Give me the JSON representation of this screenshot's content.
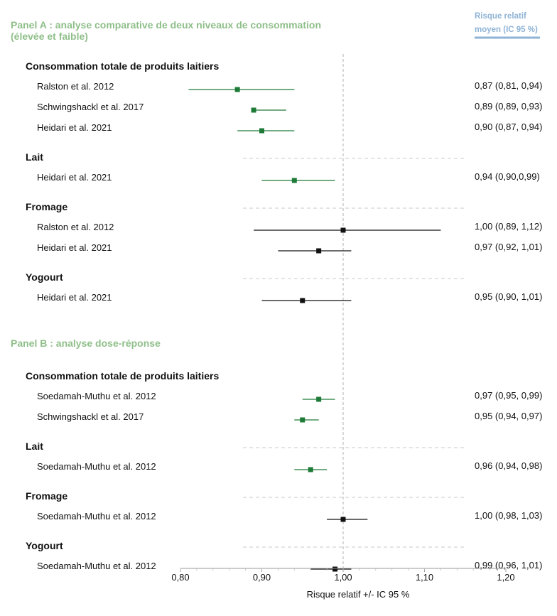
{
  "chart_data": {
    "type": "forest",
    "header": [
      "Risque relatif",
      "moyen (IC 95 %)"
    ],
    "xlabel": "Risque relatif +/- IC 95 %",
    "xlim": [
      0.8,
      1.2
    ],
    "x_ticks": [
      0.8,
      0.9,
      1.0,
      1.1,
      1.2
    ],
    "x_tick_labels": [
      "0,80",
      "0,90",
      "1,00",
      "1,10",
      "1,20"
    ],
    "reference_line": 1.0,
    "panels": [
      {
        "title": [
          "Panel A : analyse comparative de deux niveaux de consommation",
          "(élevée et faible)"
        ],
        "groups": [
          {
            "label": "Consommation totale de produits laitiers",
            "color": "#1e7a37",
            "studies": [
              {
                "name": "Ralston et al. 2012",
                "rr": 0.87,
                "low": 0.81,
                "high": 0.94,
                "ci_text": "0,87 (0,81, 0,94)"
              },
              {
                "name": "Schwingshackl et al. 2017",
                "rr": 0.89,
                "low": 0.89,
                "high": 0.93,
                "ci_text": "0,89 (0,89, 0,93)"
              },
              {
                "name": "Heidari et al. 2021",
                "rr": 0.9,
                "low": 0.87,
                "high": 0.94,
                "ci_text": "0,90 (0,87, 0,94)"
              }
            ]
          },
          {
            "label": "Lait",
            "color": "#1e7a37",
            "studies": [
              {
                "name": "Heidari et al. 2021",
                "rr": 0.94,
                "low": 0.9,
                "high": 0.99,
                "ci_text": "0,94 (0,90,0,99)"
              }
            ]
          },
          {
            "label": "Fromage",
            "color": "#111111",
            "studies": [
              {
                "name": "Ralston et al. 2012",
                "rr": 1.0,
                "low": 0.89,
                "high": 1.12,
                "ci_text": "1,00 (0,89, 1,12)"
              },
              {
                "name": "Heidari et al. 2021",
                "rr": 0.97,
                "low": 0.92,
                "high": 1.01,
                "ci_text": "0,97 (0,92, 1,01)"
              }
            ]
          },
          {
            "label": "Yogourt",
            "color": "#111111",
            "studies": [
              {
                "name": "Heidari et al. 2021",
                "rr": 0.95,
                "low": 0.9,
                "high": 1.01,
                "ci_text": "0,95 (0,90, 1,01)"
              }
            ]
          }
        ]
      },
      {
        "title": [
          "Panel B : analyse dose-réponse"
        ],
        "groups": [
          {
            "label": "Consommation totale de produits laitiers",
            "color": "#1e7a37",
            "studies": [
              {
                "name": "Soedamah-Muthu et al. 2012",
                "rr": 0.97,
                "low": 0.95,
                "high": 0.99,
                "ci_text": "0,97 (0,95, 0,99)"
              },
              {
                "name": "Schwingshackl et al. 2017",
                "rr": 0.95,
                "low": 0.94,
                "high": 0.97,
                "ci_text": "0,95 (0,94, 0,97)"
              }
            ]
          },
          {
            "label": "Lait",
            "color": "#1e7a37",
            "studies": [
              {
                "name": "Soedamah-Muthu et al. 2012",
                "rr": 0.96,
                "low": 0.94,
                "high": 0.98,
                "ci_text": "0,96 (0,94, 0,98)"
              }
            ]
          },
          {
            "label": "Fromage",
            "color": "#111111",
            "studies": [
              {
                "name": "Soedamah-Muthu et al. 2012",
                "rr": 1.0,
                "low": 0.98,
                "high": 1.03,
                "ci_text": "1,00 (0,98, 1,03)"
              }
            ]
          },
          {
            "label": "Yogourt",
            "color": "#111111",
            "studies": [
              {
                "name": "Soedamah-Muthu et al. 2012",
                "rr": 0.99,
                "low": 0.96,
                "high": 1.01,
                "ci_text": "0,99 (0,96, 1,01)"
              }
            ]
          }
        ]
      }
    ]
  }
}
